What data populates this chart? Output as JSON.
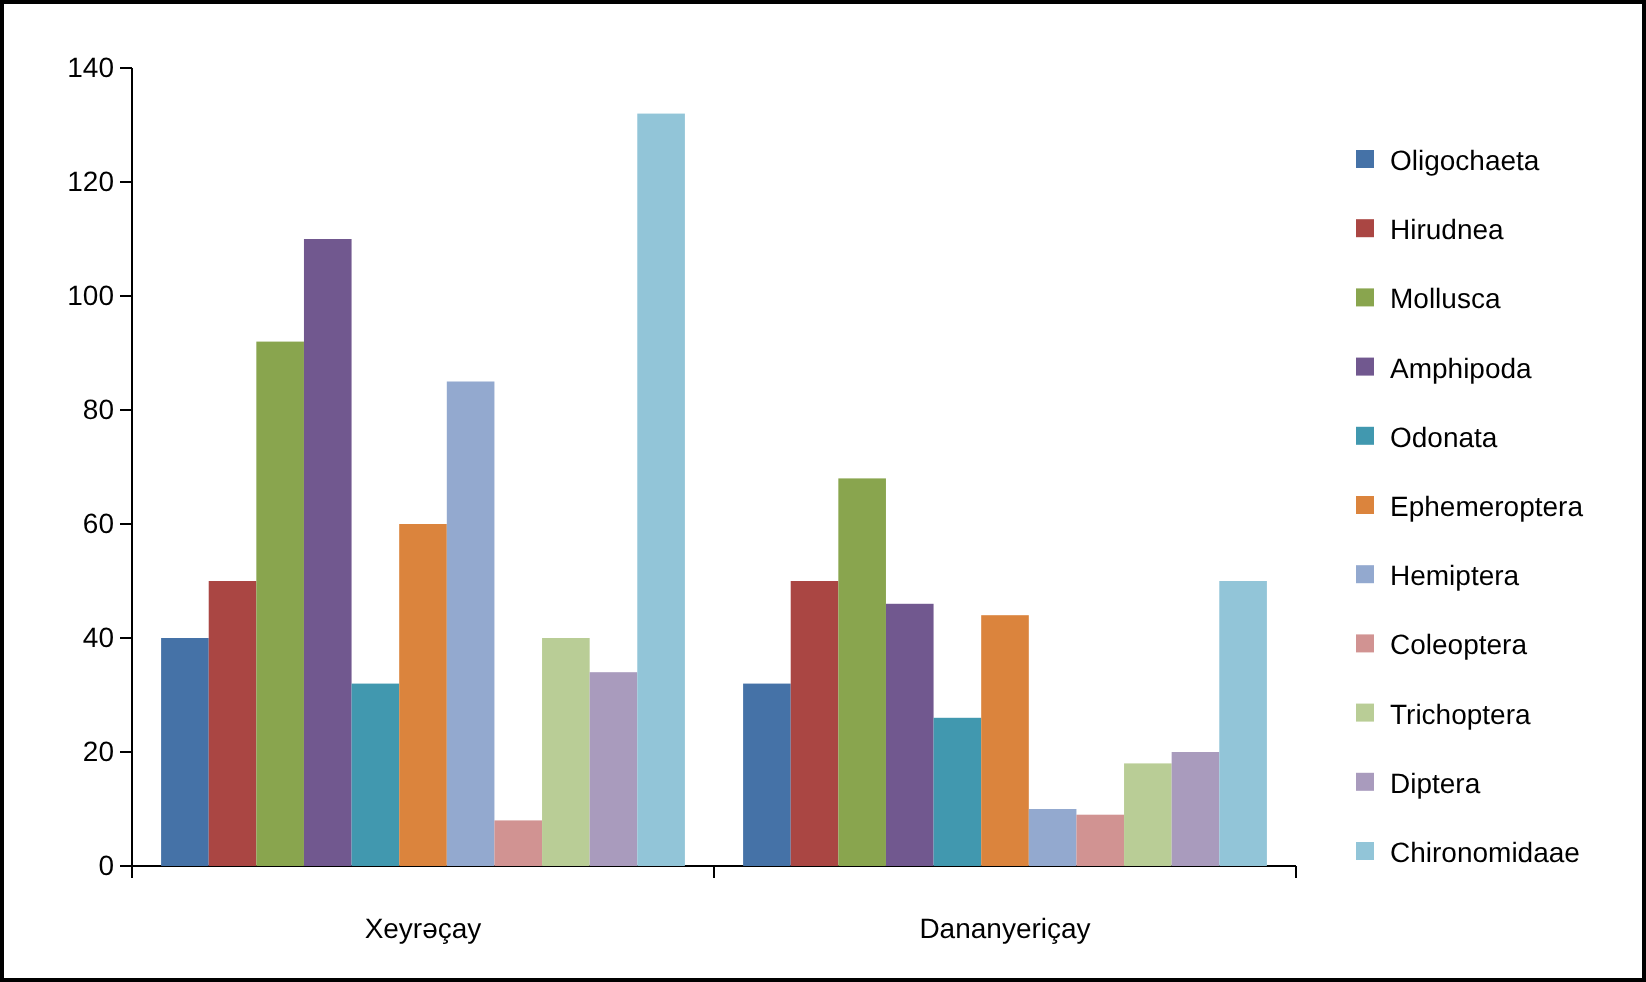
{
  "chart_data": {
    "type": "bar",
    "categories": [
      "Xeyrəçay",
      "Dananyeriçay"
    ],
    "series": [
      {
        "name": "Oligochaeta",
        "color": "#4572a7",
        "values": [
          40,
          32
        ]
      },
      {
        "name": "Hirudnea",
        "color": "#aa4643",
        "values": [
          50,
          50
        ]
      },
      {
        "name": "Mollusca",
        "color": "#89a54e",
        "values": [
          92,
          68
        ]
      },
      {
        "name": "Amphipoda",
        "color": "#71588f",
        "values": [
          110,
          46
        ]
      },
      {
        "name": "Odonata",
        "color": "#4198af",
        "values": [
          32,
          26
        ]
      },
      {
        "name": "Ephemeroptera",
        "color": "#db843d",
        "values": [
          60,
          44
        ]
      },
      {
        "name": "Hemiptera",
        "color": "#93a9cf",
        "values": [
          85,
          10
        ]
      },
      {
        "name": "Coleoptera",
        "color": "#d19392",
        "values": [
          8,
          9
        ]
      },
      {
        "name": "Trichoptera",
        "color": "#b9cd96",
        "values": [
          40,
          18
        ]
      },
      {
        "name": "Diptera",
        "color": "#a99bbd",
        "values": [
          34,
          20
        ]
      },
      {
        "name": "Chironomidaae",
        "color": "#92c5d8",
        "values": [
          132,
          50
        ]
      }
    ],
    "ylim": [
      0,
      140
    ],
    "yticks": [
      0,
      20,
      40,
      60,
      80,
      100,
      120,
      140
    ],
    "grid": false,
    "legend": "right"
  }
}
